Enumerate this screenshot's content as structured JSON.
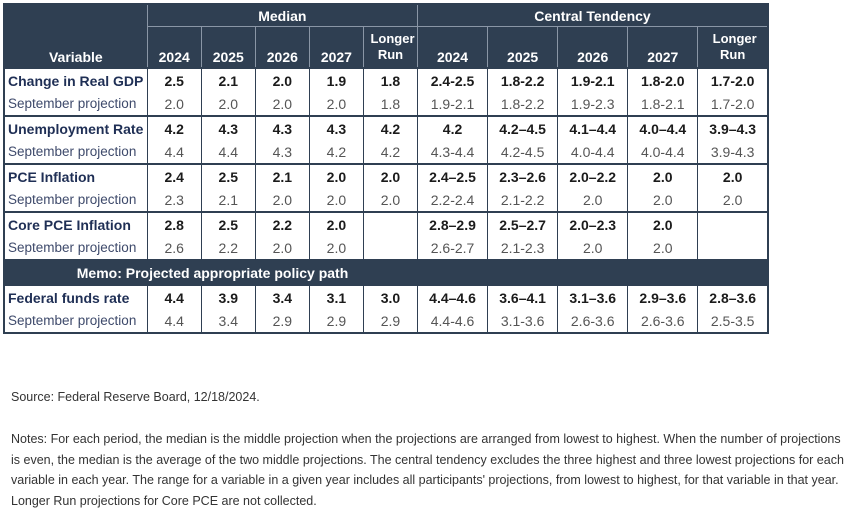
{
  "table": {
    "groups": {
      "median": "Median",
      "central": "Central Tendency"
    },
    "variable_header": "Variable",
    "year_headers": [
      "2024",
      "2025",
      "2026",
      "2027",
      "Longer Run"
    ],
    "memo_label": "Memo: Projected appropriate policy path",
    "rows": [
      {
        "type": "main",
        "label": "Change in Real GDP",
        "median": [
          "2.5",
          "2.1",
          "2.0",
          "1.9",
          "1.8"
        ],
        "central": [
          "2.4-2.5",
          "1.8-2.2",
          "1.9-2.1",
          "1.8-2.0",
          "1.7-2.0"
        ]
      },
      {
        "type": "sep",
        "label": "September projection",
        "median": [
          "2.0",
          "2.0",
          "2.0",
          "2.0",
          "1.8"
        ],
        "central": [
          "1.9-2.1",
          "1.8-2.2",
          "1.9-2.3",
          "1.8-2.1",
          "1.7-2.0"
        ]
      },
      {
        "type": "main",
        "label": "Unemployment Rate",
        "median": [
          "4.2",
          "4.3",
          "4.3",
          "4.3",
          "4.2"
        ],
        "central": [
          "4.2",
          "4.2–4.5",
          "4.1–4.4",
          "4.0–4.4",
          "3.9–4.3"
        ]
      },
      {
        "type": "sep",
        "label": "September projection",
        "median": [
          "4.4",
          "4.4",
          "4.3",
          "4.2",
          "4.2"
        ],
        "central": [
          "4.3-4.4",
          "4.2-4.5",
          "4.0-4.4",
          "4.0-4.4",
          "3.9-4.3"
        ]
      },
      {
        "type": "main",
        "label": "PCE Inflation",
        "median": [
          "2.4",
          "2.5",
          "2.1",
          "2.0",
          "2.0"
        ],
        "central": [
          "2.4–2.5",
          "2.3–2.6",
          "2.0–2.2",
          "2.0",
          "2.0"
        ]
      },
      {
        "type": "sep",
        "label": "September projection",
        "median": [
          "2.3",
          "2.1",
          "2.0",
          "2.0",
          "2.0"
        ],
        "central": [
          "2.2-2.4",
          "2.1-2.2",
          "2.0",
          "2.0",
          "2.0"
        ]
      },
      {
        "type": "main",
        "label": "Core PCE Inflation",
        "median": [
          "2.8",
          "2.5",
          "2.2",
          "2.0",
          ""
        ],
        "central": [
          "2.8–2.9",
          "2.5–2.7",
          "2.0–2.3",
          "2.0",
          ""
        ]
      },
      {
        "type": "sep",
        "label": "September projection",
        "median": [
          "2.6",
          "2.2",
          "2.0",
          "2.0",
          ""
        ],
        "central": [
          "2.6-2.7",
          "2.1-2.3",
          "2.0",
          "2.0",
          ""
        ]
      }
    ],
    "policy_rows": [
      {
        "type": "main",
        "label": "Federal funds rate",
        "median": [
          "4.4",
          "3.9",
          "3.4",
          "3.1",
          "3.0"
        ],
        "central": [
          "4.4–4.6",
          "3.6–4.1",
          "3.1–3.6",
          "2.9–3.6",
          "2.8–3.6"
        ]
      },
      {
        "type": "sep",
        "label": "September projection",
        "median": [
          "4.4",
          "3.4",
          "2.9",
          "2.9",
          "2.9"
        ],
        "central": [
          "4.4-4.6",
          "3.1-3.6",
          "2.6-3.6",
          "2.6-3.6",
          "2.5-3.5"
        ]
      }
    ]
  },
  "source": "Source: Federal Reserve Board, 12/18/2024.",
  "notes": "Notes: For each period, the median is the middle projection when the projections are arranged from lowest to highest. When the number of projections is even, the median is the average of the two middle projections. The central tendency excludes the three highest and three lowest projections for each variable in each year. The range for a variable in a given year includes all participants' projections, from lowest to highest, for that variable in that year. Longer Run projections for Core PCE are not collected."
}
